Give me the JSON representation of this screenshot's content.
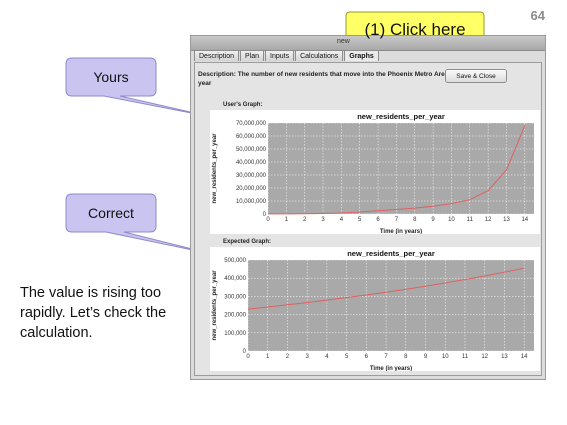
{
  "slide": {
    "number": "64"
  },
  "window": {
    "title": "new"
  },
  "tabs": [
    {
      "label": "Description",
      "active": false
    },
    {
      "label": "Plan",
      "active": false
    },
    {
      "label": "Inputs",
      "active": false
    },
    {
      "label": "Calculations",
      "active": false
    },
    {
      "label": "Graphs",
      "active": true
    }
  ],
  "description": "Description: The number of new residents that move into the Phoenix Metro Area each year",
  "save_button": "Save & Close",
  "users_graph": {
    "label": "User's Graph:"
  },
  "expected_graph": {
    "label": "Expected Graph:"
  },
  "callouts": {
    "yours": "Yours",
    "correct": "Correct",
    "click_here": "(1) Click here"
  },
  "note": "The value is rising too rapidly.  Let’s check the calculation.",
  "colors": {
    "callout_purple": "#c9c5f0",
    "callout_yellow": "#ffff66",
    "plot_bg": "#a9a9a9",
    "series_line": "#e06060"
  },
  "chart_data": [
    {
      "type": "line",
      "title": "new_residents_per_year",
      "xlabel": "Time (in years)",
      "ylabel": "new_residents_per_year",
      "x": [
        0,
        1,
        2,
        3,
        4,
        5,
        6,
        7,
        8,
        9,
        10,
        11,
        12,
        13,
        14
      ],
      "series": [
        {
          "values": [
            50000,
            100000,
            200000,
            400000,
            800000,
            1500000,
            2500000,
            3500000,
            4500000,
            6000000,
            8000000,
            11000000,
            18000000,
            34000000,
            68000000
          ]
        }
      ],
      "xlim": [
        0,
        14.5
      ],
      "ylim": [
        0,
        70000000
      ],
      "xticks": [
        "0",
        "1",
        "2",
        "3",
        "4",
        "5",
        "6",
        "7",
        "8",
        "9",
        "10",
        "11",
        "12",
        "13",
        "14"
      ],
      "yticks": [
        {
          "value": 0,
          "label": "0"
        },
        {
          "value": 10000000,
          "label": "10,000,000"
        },
        {
          "value": 20000000,
          "label": "20,000,000"
        },
        {
          "value": 30000000,
          "label": "30,000,000"
        },
        {
          "value": 40000000,
          "label": "40,000,000"
        },
        {
          "value": 50000000,
          "label": "50,000,000"
        },
        {
          "value": 60000000,
          "label": "60,000,000"
        },
        {
          "value": 70000000,
          "label": "70,000,000"
        }
      ],
      "grid": true
    },
    {
      "type": "line",
      "title": "new_residents_per_year",
      "xlabel": "Time (in years)",
      "ylabel": "new_residents_per_year",
      "x": [
        0,
        1,
        2,
        3,
        4,
        5,
        6,
        7,
        8,
        9,
        10,
        11,
        12,
        13,
        14
      ],
      "series": [
        {
          "values": [
            230000,
            242000,
            254000,
            266000,
            280000,
            294000,
            308000,
            323000,
            339000,
            356000,
            374000,
            393000,
            412000,
            433000,
            455000
          ]
        }
      ],
      "xlim": [
        0,
        14.5
      ],
      "ylim": [
        0,
        500000
      ],
      "xticks": [
        "0",
        "1",
        "2",
        "3",
        "4",
        "5",
        "6",
        "7",
        "8",
        "9",
        "10",
        "11",
        "12",
        "13",
        "14"
      ],
      "yticks": [
        {
          "value": 0,
          "label": "0"
        },
        {
          "value": 100000,
          "label": "100,000"
        },
        {
          "value": 200000,
          "label": "200,000"
        },
        {
          "value": 300000,
          "label": "300,000"
        },
        {
          "value": 400000,
          "label": "400,000"
        },
        {
          "value": 500000,
          "label": "500,000"
        }
      ],
      "grid": true
    }
  ]
}
